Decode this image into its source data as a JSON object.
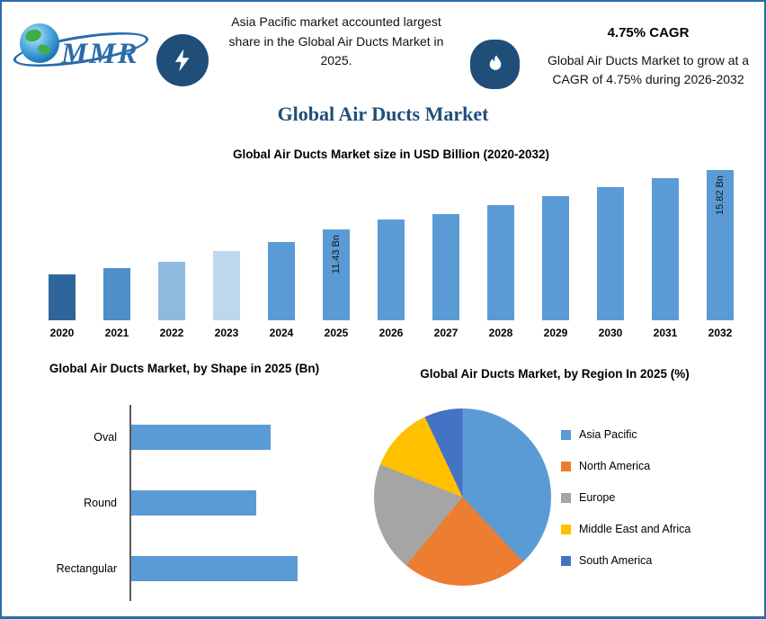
{
  "page": {
    "accent_color": "#2B6CA8",
    "badge_color": "#1F4E79",
    "title_color": "#1F4E79"
  },
  "header": {
    "logo_text": "MMR",
    "highlight_note": "Asia Pacific market accounted largest share in the Global Air Ducts Market in 2025.",
    "cagr_title": "4.75% CAGR",
    "cagr_note": "Global Air Ducts Market to grow at a CAGR of 4.75% during 2026-2032",
    "icons": {
      "bolt": "lightning-bolt",
      "flame": "flame"
    }
  },
  "main_title": "Global Air Ducts Market",
  "chart_data": [
    {
      "type": "bar",
      "title": "Global Air Ducts Market size in USD Billion (2020-2032)",
      "categories": [
        "2020",
        "2021",
        "2022",
        "2023",
        "2024",
        "2025",
        "2026",
        "2027",
        "2028",
        "2029",
        "2030",
        "2031",
        "2032"
      ],
      "values": [
        8.1,
        8.6,
        9.0,
        9.8,
        10.5,
        11.43,
        12.2,
        12.6,
        13.2,
        13.9,
        14.6,
        15.2,
        15.82
      ],
      "unit": "USD Bn",
      "axis_baseline": 4.7,
      "grid": false,
      "data_labels": {
        "2025": "11.43 Bn",
        "2032": "15.82 Bn"
      },
      "bar_colors": [
        "#2F6699",
        "#4E8FC7",
        "#8FBADF",
        "#BDD7EE",
        "#5B9BD5",
        "#5B9BD5",
        "#5B9BD5",
        "#5B9BD5",
        "#5B9BD5",
        "#5B9BD5",
        "#5B9BD5",
        "#5B9BD5",
        "#5B9BD5"
      ]
    },
    {
      "type": "bar",
      "orientation": "horizontal",
      "title": "Global Air Ducts Market, by Shape in 2025 (Bn)",
      "categories": [
        "Oval",
        "Round",
        "Rectangular"
      ],
      "values": [
        3.7,
        3.3,
        4.4
      ],
      "unit": "Bn",
      "bar_color": "#5B9BD5"
    },
    {
      "type": "pie",
      "title": "Global Air Ducts Market, by Region In 2025 (%)",
      "legend_position": "right",
      "slices": [
        {
          "label": "Asia Pacific",
          "value": 38,
          "color": "#5B9BD5"
        },
        {
          "label": "North America",
          "value": 23,
          "color": "#ED7D31"
        },
        {
          "label": "Europe",
          "value": 20,
          "color": "#A5A5A5"
        },
        {
          "label": "Middle East and Africa",
          "value": 12,
          "color": "#FFC000"
        },
        {
          "label": "South America",
          "value": 7,
          "color": "#4472C4"
        }
      ]
    }
  ]
}
